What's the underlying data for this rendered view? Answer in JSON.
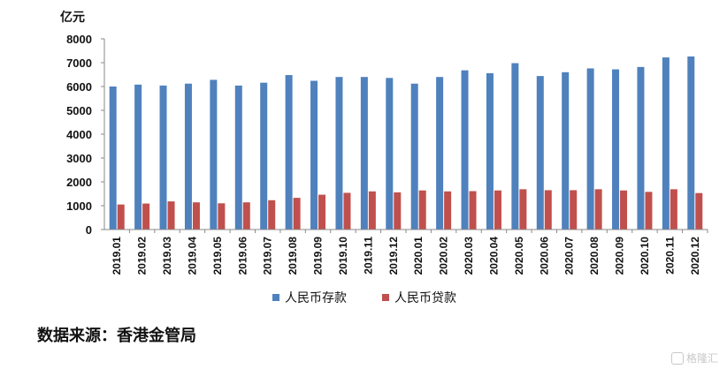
{
  "chart_data": {
    "type": "bar",
    "unit_label": "亿元",
    "categories": [
      "2019.01",
      "2019.02",
      "2019.03",
      "2019.04",
      "2019.05",
      "2019.06",
      "2019.07",
      "2019.08",
      "2019.09",
      "2019.10",
      "2019.11",
      "2019.12",
      "2020.01",
      "2020.02",
      "2020.03",
      "2020.04",
      "2020.05",
      "2020.06",
      "2020.07",
      "2020.08",
      "2020.09",
      "2020.10",
      "2020.11",
      "2020.12"
    ],
    "series": [
      {
        "name": "人民币存款",
        "color": "#4f81bd",
        "values": [
          6000,
          6080,
          6040,
          6120,
          6280,
          6040,
          6160,
          6480,
          6240,
          6400,
          6400,
          6360,
          6120,
          6400,
          6680,
          6560,
          6980,
          6440,
          6600,
          6760,
          6720,
          6820,
          7220,
          7260
        ]
      },
      {
        "name": "人民币贷款",
        "color": "#c0504d",
        "values": [
          1050,
          1090,
          1180,
          1140,
          1100,
          1140,
          1230,
          1330,
          1460,
          1540,
          1600,
          1560,
          1640,
          1600,
          1610,
          1640,
          1690,
          1650,
          1650,
          1690,
          1640,
          1580,
          1690,
          1530
        ]
      }
    ],
    "ylim": [
      0,
      8000
    ],
    "yticks": [
      0,
      1000,
      2000,
      3000,
      4000,
      5000,
      6000,
      7000,
      8000
    ],
    "grid": false,
    "legend_position": "bottom"
  },
  "source_note": "数据来源：香港金管局",
  "watermark": "格隆汇"
}
